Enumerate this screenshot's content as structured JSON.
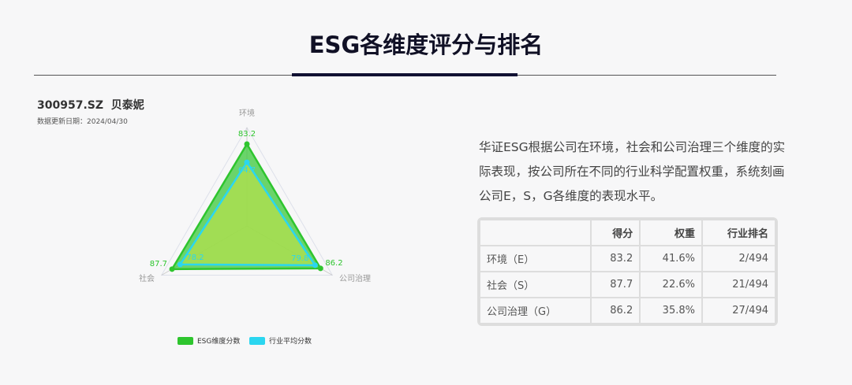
{
  "title": "ESG各维度评分与排名",
  "stock": "300957.SZ  贝泰妮",
  "update_date": "数据更新日期：2024/04/30",
  "description": "华证ESG根据公司在环境，社会和公司治理三个维度的实际表现，按公司所在不同的行业科学配置权重，系统刻画公司E，S，G各维度的表现水平。",
  "table": {
    "headers": [
      "",
      "得分",
      "权重",
      "行业排名"
    ],
    "rows": [
      [
        "环境（E）",
        "83.2",
        "41.6%",
        "2/494"
      ],
      [
        "社会（S）",
        "87.7",
        "22.6%",
        "21/494"
      ],
      [
        "公司治理（G）",
        "86.2",
        "35.8%",
        "27/494"
      ]
    ]
  },
  "chart_data": {
    "type": "radar",
    "categories": [
      "环境",
      "公司治理",
      "社会"
    ],
    "max": 100,
    "series": [
      {
        "name": "ESG维度分数",
        "values": [
          83.2,
          86.2,
          87.7
        ],
        "color": "#2ec52e"
      },
      {
        "name": "行业平均分数",
        "values": [
          64.7,
          79.8,
          78.2
        ],
        "color": "#2bd6f0"
      }
    ],
    "legend": "bottom"
  }
}
